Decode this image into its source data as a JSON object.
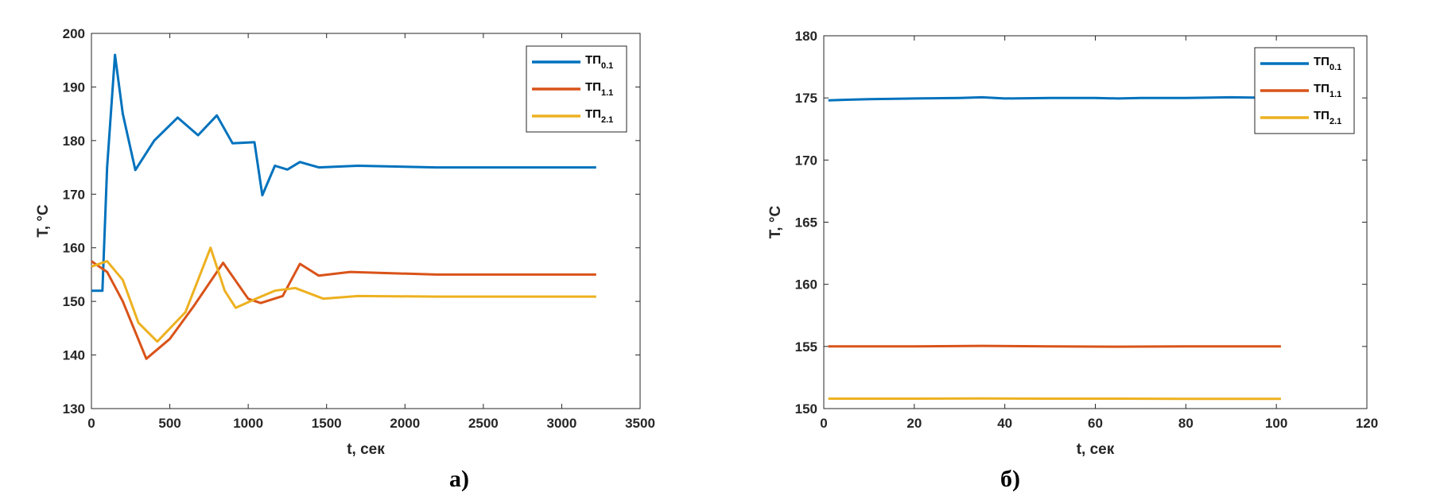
{
  "chart_data": [
    {
      "type": "line",
      "panel_label": "а)",
      "xlabel": "t, сек",
      "ylabel": "T, °C",
      "xlim": [
        0,
        3500
      ],
      "ylim": [
        130,
        200
      ],
      "xticks": [
        0,
        500,
        1000,
        1500,
        2000,
        2500,
        3000,
        3500
      ],
      "yticks": [
        130,
        140,
        150,
        160,
        170,
        180,
        190,
        200
      ],
      "grid": false,
      "legend_position": "top-right",
      "series": [
        {
          "name": "ТП",
          "subscript": "0.1",
          "color": "#0072BD",
          "x": [
            0,
            70,
            100,
            150,
            200,
            280,
            400,
            550,
            680,
            800,
            900,
            1040,
            1090,
            1170,
            1250,
            1330,
            1450,
            1700,
            2200,
            3220
          ],
          "y": [
            152,
            152,
            175,
            196,
            185,
            174.5,
            180,
            184.3,
            181,
            184.7,
            179.5,
            179.7,
            169.8,
            175.3,
            174.6,
            176,
            175,
            175.3,
            175,
            175
          ]
        },
        {
          "name": "ТП",
          "subscript": "1.1",
          "color": "#D95319",
          "x": [
            0,
            100,
            200,
            350,
            500,
            650,
            840,
            1000,
            1080,
            1220,
            1330,
            1450,
            1650,
            2200,
            3220
          ],
          "y": [
            157.5,
            155.5,
            150,
            139.3,
            143,
            149,
            157.2,
            150.5,
            149.7,
            151,
            157,
            154.8,
            155.5,
            155,
            155
          ]
        },
        {
          "name": "ТП",
          "subscript": "2.1",
          "color": "#EDB120",
          "x": [
            0,
            100,
            200,
            300,
            420,
            600,
            760,
            850,
            920,
            1050,
            1170,
            1300,
            1480,
            1700,
            2200,
            3220
          ],
          "y": [
            156.5,
            157.5,
            154,
            146,
            142.5,
            148,
            160,
            152,
            148.8,
            150.5,
            152,
            152.5,
            150.5,
            151,
            150.9,
            150.9
          ]
        }
      ]
    },
    {
      "type": "line",
      "panel_label": "б)",
      "xlabel": "t, сек",
      "ylabel": "T, °C",
      "xlim": [
        0,
        120
      ],
      "ylim": [
        150,
        180
      ],
      "xticks": [
        0,
        20,
        40,
        60,
        80,
        100,
        120
      ],
      "yticks": [
        150,
        155,
        160,
        165,
        170,
        175,
        180
      ],
      "grid": false,
      "legend_position": "top-right",
      "series": [
        {
          "name": "ТП",
          "subscript": "0.1",
          "color": "#0072BD",
          "x": [
            1,
            5,
            10,
            20,
            30,
            35,
            40,
            50,
            60,
            65,
            70,
            80,
            90,
            101
          ],
          "y": [
            174.8,
            174.85,
            174.9,
            174.95,
            175,
            175.05,
            174.95,
            175,
            175,
            174.95,
            175,
            175,
            175.05,
            175
          ]
        },
        {
          "name": "ТП",
          "subscript": "1.1",
          "color": "#D95319",
          "x": [
            1,
            20,
            35,
            50,
            65,
            80,
            101
          ],
          "y": [
            155,
            155,
            155.05,
            155,
            154.98,
            155,
            155
          ]
        },
        {
          "name": "ТП",
          "subscript": "2.1",
          "color": "#EDB120",
          "x": [
            1,
            20,
            35,
            50,
            65,
            80,
            101
          ],
          "y": [
            150.8,
            150.8,
            150.82,
            150.8,
            150.8,
            150.78,
            150.78
          ]
        }
      ]
    }
  ]
}
